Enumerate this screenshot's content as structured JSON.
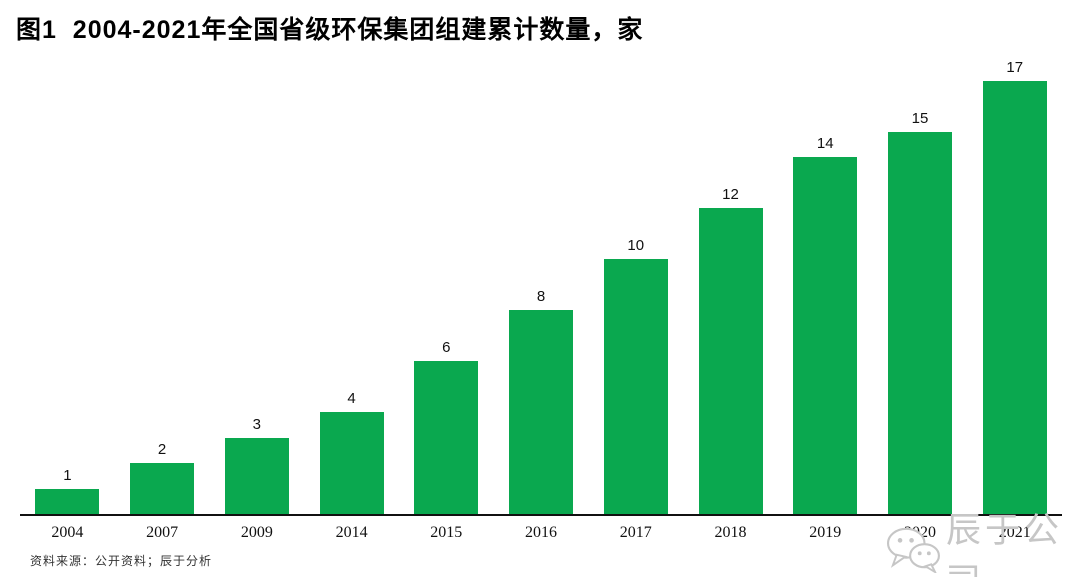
{
  "title": "图1  2004-2021年全国省级环保集团组建累计数量，家",
  "chart_data": {
    "type": "bar",
    "categories": [
      "2004",
      "2007",
      "2009",
      "2014",
      "2015",
      "2016",
      "2017",
      "2018",
      "2019",
      "2020",
      "2021"
    ],
    "values": [
      1,
      2,
      3,
      4,
      6,
      8,
      10,
      12,
      14,
      15,
      17
    ],
    "title": "图1  2004-2021年全国省级环保集团组建累计数量，家",
    "xlabel": "",
    "ylabel": "",
    "ylim": [
      0,
      17
    ],
    "grid": false,
    "legend": false,
    "value_labels_shown": true
  },
  "colors": {
    "bar": "#0aa84f",
    "axis": "#111111",
    "watermark": "#c6c6c6"
  },
  "watermark": {
    "icon": "wechat-icon",
    "text": "辰于公司"
  },
  "source_note": "资料来源：公开资料；辰于分析"
}
